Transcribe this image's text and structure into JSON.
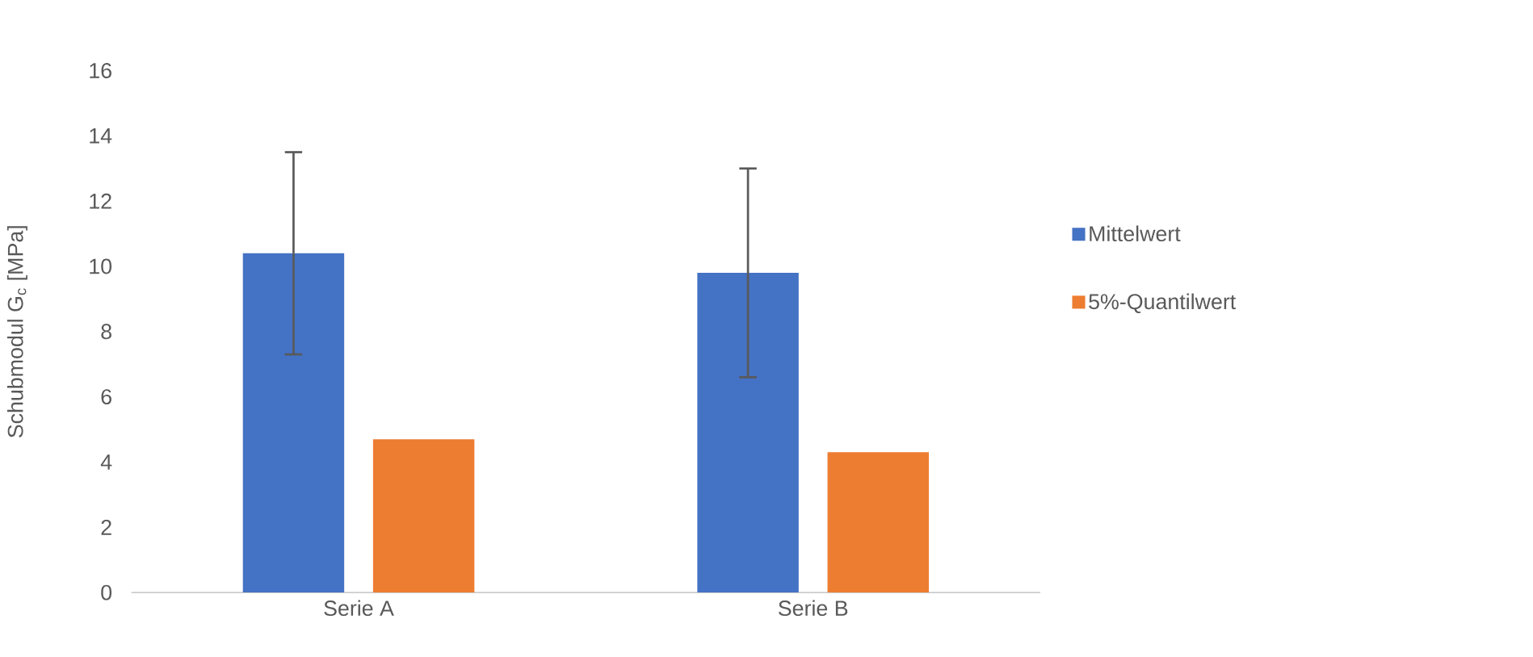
{
  "chart_data": {
    "type": "bar",
    "ylabel": "Schubmodul G$_{c}$ [MPa]",
    "categories": [
      "Serie A",
      "Serie B"
    ],
    "series": [
      {
        "name": "Mittelwert",
        "color": "#4472c4",
        "values": [
          10.4,
          9.8
        ],
        "errors": [
          3.1,
          3.2
        ]
      },
      {
        "name": "5%-Quantilwert",
        "color": "#ed7d31",
        "values": [
          4.7,
          4.3
        ]
      }
    ],
    "ylim": [
      0,
      16
    ],
    "yticks": [
      0,
      2,
      4,
      6,
      8,
      10,
      12,
      14,
      16
    ],
    "grid": false,
    "legend": "right"
  }
}
